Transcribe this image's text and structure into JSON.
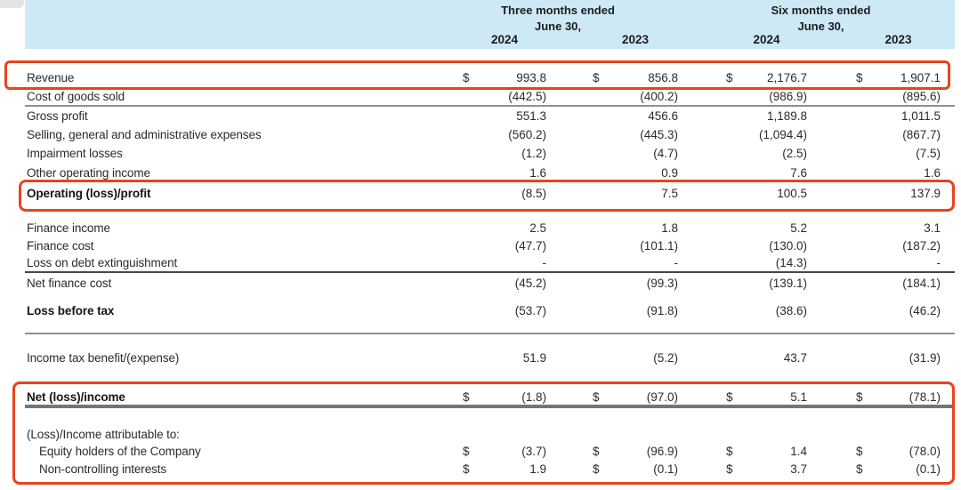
{
  "currency_symbol": "$",
  "colors": {
    "header_background": "#cde9f6",
    "highlight_border": "#e8431d",
    "text": "#2b2b2b",
    "rule_gray": "#8f8f8f",
    "rule_dark": "#474747",
    "rule_thick": "#757575"
  },
  "header": {
    "groups": [
      {
        "line1": "Three months ended",
        "line2": "June 30,"
      },
      {
        "line1": "Six months ended",
        "line2": "June 30,"
      }
    ],
    "years": [
      "2024",
      "2023",
      "2024",
      "2023"
    ]
  },
  "rows": [
    {
      "label": "Revenue",
      "dollar": true,
      "bold": false,
      "indent": false,
      "rule": null,
      "values": [
        "993.8",
        "856.8",
        "2,176.7",
        "1,907.1"
      ],
      "highlighted": true
    },
    {
      "label": "Cost of goods sold",
      "dollar": false,
      "bold": false,
      "indent": false,
      "rule": "gray",
      "values": [
        "(442.5)",
        "(400.2)",
        "(986.9)",
        "(895.6)"
      ],
      "highlighted": false
    },
    {
      "label": "Gross profit",
      "dollar": false,
      "bold": false,
      "indent": false,
      "rule": null,
      "values": [
        "551.3",
        "456.6",
        "1,189.8",
        "1,011.5"
      ],
      "highlighted": false
    },
    {
      "label": "Selling, general and administrative expenses",
      "dollar": false,
      "bold": false,
      "indent": false,
      "rule": null,
      "values": [
        "(560.2)",
        "(445.3)",
        "(1,094.4)",
        "(867.7)"
      ],
      "highlighted": false
    },
    {
      "label": "Impairment losses",
      "dollar": false,
      "bold": false,
      "indent": false,
      "rule": null,
      "values": [
        "(1.2)",
        "(4.7)",
        "(2.5)",
        "(7.5)"
      ],
      "highlighted": false
    },
    {
      "label": "Other operating income",
      "dollar": false,
      "bold": false,
      "indent": false,
      "rule": null,
      "values": [
        "1.6",
        "0.9",
        "7.6",
        "1.6"
      ],
      "highlighted": false
    },
    {
      "label": "Operating (loss)/profit",
      "dollar": false,
      "bold": true,
      "indent": false,
      "rule": null,
      "values": [
        "(8.5)",
        "7.5",
        "100.5",
        "137.9"
      ],
      "highlighted": true
    },
    {
      "label": "Finance income",
      "dollar": false,
      "bold": false,
      "indent": false,
      "rule": null,
      "values": [
        "2.5",
        "1.8",
        "5.2",
        "3.1"
      ],
      "highlighted": false
    },
    {
      "label": "Finance cost",
      "dollar": false,
      "bold": false,
      "indent": false,
      "rule": null,
      "values": [
        "(47.7)",
        "(101.1)",
        "(130.0)",
        "(187.2)"
      ],
      "highlighted": false
    },
    {
      "label": "Loss on debt extinguishment",
      "dollar": false,
      "bold": false,
      "indent": false,
      "rule": "dark",
      "values": [
        "-",
        "-",
        "(14.3)",
        "-"
      ],
      "highlighted": false
    },
    {
      "label": "Net finance cost",
      "dollar": false,
      "bold": false,
      "indent": false,
      "rule": null,
      "values": [
        "(45.2)",
        "(99.3)",
        "(139.1)",
        "(184.1)"
      ],
      "highlighted": false
    },
    {
      "label": "Loss before tax",
      "dollar": false,
      "bold": true,
      "indent": false,
      "rule": "gray",
      "values": [
        "(53.7)",
        "(91.8)",
        "(38.6)",
        "(46.2)"
      ],
      "highlighted": false
    },
    {
      "label": "Income tax benefit/(expense)",
      "dollar": false,
      "bold": false,
      "indent": false,
      "rule": null,
      "values": [
        "51.9",
        "(5.2)",
        "43.7",
        "(31.9)"
      ],
      "highlighted": false
    },
    {
      "label": "Net (loss)/income",
      "dollar": true,
      "bold": true,
      "indent": false,
      "rule": "thick",
      "values": [
        "(1.8)",
        "(97.0)",
        "5.1",
        "(78.1)"
      ],
      "highlighted": true
    },
    {
      "label": "(Loss)/Income attributable to:",
      "dollar": false,
      "bold": false,
      "indent": false,
      "rule": null,
      "values": null,
      "highlighted": true
    },
    {
      "label": "Equity holders of the Company",
      "dollar": true,
      "bold": false,
      "indent": true,
      "rule": null,
      "values": [
        "(3.7)",
        "(96.9)",
        "1.4",
        "(78.0)"
      ],
      "highlighted": true
    },
    {
      "label": "Non-controlling interests",
      "dollar": true,
      "bold": false,
      "indent": true,
      "rule": null,
      "values": [
        "1.9",
        "(0.1)",
        "3.7",
        "(0.1)"
      ],
      "highlighted": true
    }
  ]
}
